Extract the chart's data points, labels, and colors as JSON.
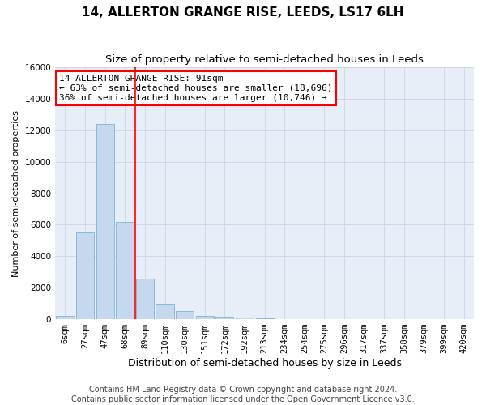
{
  "title": "14, ALLERTON GRANGE RISE, LEEDS, LS17 6LH",
  "subtitle": "Size of property relative to semi-detached houses in Leeds",
  "xlabel": "Distribution of semi-detached houses by size in Leeds",
  "ylabel": "Number of semi-detached properties",
  "bar_labels": [
    "6sqm",
    "27sqm",
    "47sqm",
    "68sqm",
    "89sqm",
    "110sqm",
    "130sqm",
    "151sqm",
    "172sqm",
    "192sqm",
    "213sqm",
    "234sqm",
    "254sqm",
    "275sqm",
    "296sqm",
    "317sqm",
    "337sqm",
    "358sqm",
    "379sqm",
    "399sqm",
    "420sqm"
  ],
  "bar_values": [
    200,
    5500,
    12400,
    6200,
    2600,
    1000,
    500,
    200,
    150,
    100,
    60,
    0,
    0,
    0,
    0,
    0,
    0,
    0,
    0,
    0,
    0
  ],
  "bar_color": "#c5d8ed",
  "bar_edge_color": "#7ab4d4",
  "property_bin_index": 4,
  "vline_color": "red",
  "annotation_text": "14 ALLERTON GRANGE RISE: 91sqm\n← 63% of semi-detached houses are smaller (18,696)\n36% of semi-detached houses are larger (10,746) →",
  "annotation_box_color": "white",
  "annotation_box_edge": "red",
  "ylim": [
    0,
    16000
  ],
  "yticks": [
    0,
    2000,
    4000,
    6000,
    8000,
    10000,
    12000,
    14000,
    16000
  ],
  "grid_color": "#d0d8e8",
  "bg_color": "#e8eef8",
  "footnote": "Contains HM Land Registry data © Crown copyright and database right 2024.\nContains public sector information licensed under the Open Government Licence v3.0.",
  "title_fontsize": 11,
  "subtitle_fontsize": 9.5,
  "xlabel_fontsize": 9,
  "ylabel_fontsize": 8,
  "tick_fontsize": 7.5,
  "annot_fontsize": 8,
  "footnote_fontsize": 7
}
